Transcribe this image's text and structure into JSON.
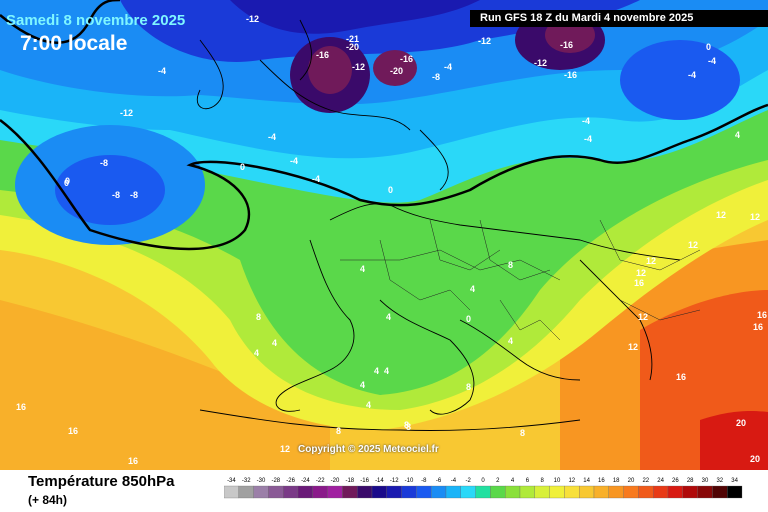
{
  "header": {
    "date": "Samedi 8 novembre 2025",
    "local_time": "7:00 locale",
    "run": "Run GFS 18 Z du Mardi 4 novembre 2025"
  },
  "footer": {
    "copyright": "Copyright © 2025 Meteociel.fr",
    "variable": "Température 850hPa",
    "forecast_hour": "(+ 84h)"
  },
  "legend": {
    "values": [
      -34,
      -32,
      -30,
      -28,
      -26,
      -24,
      -22,
      -20,
      -18,
      -16,
      -14,
      -12,
      -10,
      -8,
      -6,
      -4,
      -2,
      0,
      2,
      4,
      6,
      8,
      10,
      12,
      14,
      16,
      18,
      20,
      22,
      24,
      26,
      28,
      30,
      32,
      34
    ],
    "colors": [
      "#c8c8c8",
      "#a0a0a0",
      "#9b7fa8",
      "#8a5a96",
      "#7a3a87",
      "#6a1a78",
      "#8a1a8a",
      "#a020a0",
      "#701a5a",
      "#3a0a6a",
      "#1a0a8a",
      "#1a1ab0",
      "#1a3ad8",
      "#1a5af0",
      "#1a8cf4",
      "#1ab4f8",
      "#2ad8f8",
      "#22e0a0",
      "#5ad84a",
      "#8ae03a",
      "#b0ea3a",
      "#d8f03a",
      "#f0f03a",
      "#f8e03a",
      "#f8c832",
      "#f8b02a",
      "#f89622",
      "#f87a1e",
      "#f05a1a",
      "#e83a16",
      "#d81a12",
      "#b00a0a",
      "#880808",
      "#500404",
      "#000000"
    ]
  },
  "map_labels": [
    {
      "text": "-12",
      "id": "l1"
    },
    {
      "text": "-16",
      "id": "l2"
    },
    {
      "text": "-20",
      "id": "l3"
    },
    {
      "text": "-21",
      "id": "l4"
    },
    {
      "text": "-12",
      "id": "l5"
    },
    {
      "text": "-16",
      "id": "l6"
    },
    {
      "text": "-20",
      "id": "l7"
    },
    {
      "text": "-8",
      "id": "l8"
    },
    {
      "text": "-4",
      "id": "l9"
    },
    {
      "text": "-12",
      "id": "l10"
    },
    {
      "text": "-16",
      "id": "l11"
    },
    {
      "text": "-12",
      "id": "l12"
    },
    {
      "text": "-16",
      "id": "l13"
    },
    {
      "text": "-4",
      "id": "l14"
    },
    {
      "text": "0",
      "id": "l15"
    },
    {
      "text": "-4",
      "id": "l16"
    },
    {
      "text": "-4",
      "id": "l17"
    },
    {
      "text": "-4",
      "id": "l18"
    },
    {
      "text": "-8",
      "id": "l19"
    },
    {
      "text": "-8",
      "id": "l20"
    },
    {
      "text": "-8",
      "id": "l21"
    },
    {
      "text": "-12",
      "id": "l22"
    },
    {
      "text": "0",
      "id": "l23"
    },
    {
      "text": "-4",
      "id": "l24"
    },
    {
      "text": "-4",
      "id": "l25"
    },
    {
      "text": "-4",
      "id": "l26"
    },
    {
      "text": "0",
      "id": "l27"
    },
    {
      "text": "0",
      "id": "l28"
    },
    {
      "text": "4",
      "id": "l29"
    },
    {
      "text": "4",
      "id": "l30"
    },
    {
      "text": "4",
      "id": "l31"
    },
    {
      "text": "8",
      "id": "l32"
    },
    {
      "text": "8",
      "id": "l33"
    },
    {
      "text": "12",
      "id": "l34"
    },
    {
      "text": "12",
      "id": "l35"
    },
    {
      "text": "16",
      "id": "l36"
    },
    {
      "text": "12",
      "id": "l37"
    },
    {
      "text": "16",
      "id": "l38"
    },
    {
      "text": "12",
      "id": "l39"
    },
    {
      "text": "16",
      "id": "l40"
    },
    {
      "text": "20",
      "id": "l41"
    },
    {
      "text": "20",
      "id": "l42"
    },
    {
      "text": "16",
      "id": "l43"
    },
    {
      "text": "16",
      "id": "l44"
    },
    {
      "text": "16",
      "id": "l45"
    },
    {
      "text": "16",
      "id": "l46"
    },
    {
      "text": "12",
      "id": "l47"
    },
    {
      "text": "8",
      "id": "l48"
    },
    {
      "text": "4",
      "id": "l49"
    },
    {
      "text": "4",
      "id": "l50"
    },
    {
      "text": "4",
      "id": "l51"
    },
    {
      "text": "4",
      "id": "l52"
    },
    {
      "text": "4",
      "id": "l53"
    },
    {
      "text": "8",
      "id": "l54"
    },
    {
      "text": "8",
      "id": "l55"
    },
    {
      "text": "0",
      "id": "l56"
    },
    {
      "text": "4",
      "id": "l57"
    },
    {
      "text": "8",
      "id": "l58"
    },
    {
      "text": "12",
      "id": "l59"
    },
    {
      "text": "12",
      "id": "l60"
    },
    {
      "text": "4",
      "id": "l61"
    },
    {
      "text": "0",
      "id": "l62"
    },
    {
      "text": "-4",
      "id": "l63"
    },
    {
      "text": "4",
      "id": "l64"
    },
    {
      "text": "12",
      "id": "l65"
    },
    {
      "text": "8",
      "id": "l66"
    }
  ]
}
